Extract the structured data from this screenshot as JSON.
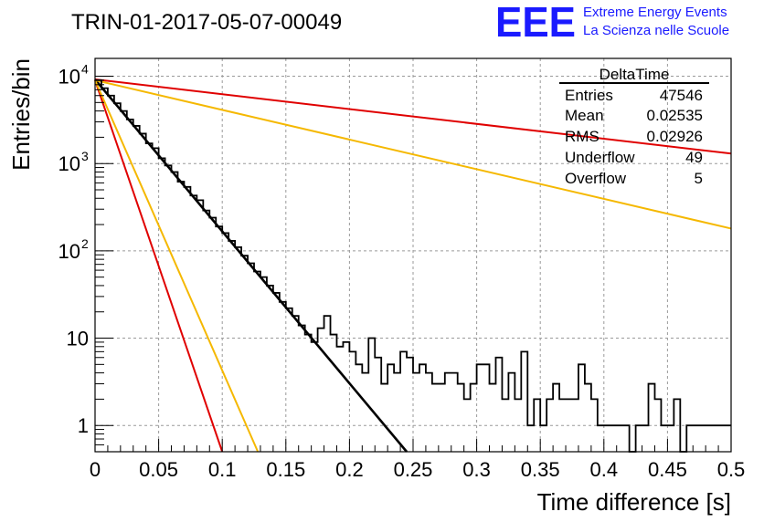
{
  "header": {
    "run_title": "TRIN-01-2017-05-07-00049",
    "logo_text": "EEE",
    "logo_line1": "Extreme Energy Events",
    "logo_line2": "La Scienza nelle Scuole",
    "logo_color": "#1a1aff"
  },
  "stats_box": {
    "title": "DeltaTime",
    "rows": [
      {
        "label": "Entries",
        "value": "47546"
      },
      {
        "label": "Mean",
        "value": "0.02535"
      },
      {
        "label": "RMS",
        "value": "0.02926"
      },
      {
        "label": "Underflow",
        "value": "49"
      },
      {
        "label": "Overflow",
        "value": "5"
      }
    ]
  },
  "chart_data": {
    "type": "line",
    "title": "TRIN-01-2017-05-07-00049",
    "xlabel": "Time difference [s]",
    "ylabel": "Entries/bin",
    "xlim": [
      0,
      0.5
    ],
    "ylim": [
      0.5,
      16000
    ],
    "y_scale": "log",
    "grid": true,
    "x_ticks": [
      "0",
      "0.05",
      "0.1",
      "0.15",
      "0.2",
      "0.25",
      "0.3",
      "0.35",
      "0.4",
      "0.45",
      "0.5"
    ],
    "y_ticks": [
      {
        "value": 1,
        "label": "1"
      },
      {
        "value": 10,
        "label": "10"
      },
      {
        "value": 100,
        "label": "10",
        "exp": "2"
      },
      {
        "value": 1000,
        "label": "10",
        "exp": "3"
      },
      {
        "value": 10000,
        "label": "10",
        "exp": "4"
      }
    ],
    "histogram": {
      "color": "#000000",
      "bin_width": 0.005,
      "values": [
        9000,
        7300,
        6000,
        4900,
        4000,
        3200,
        2700,
        2200,
        1700,
        1500,
        1150,
        950,
        800,
        620,
        540,
        430,
        380,
        290,
        240,
        190,
        160,
        130,
        110,
        88,
        72,
        58,
        50,
        40,
        33,
        26,
        22,
        18,
        14,
        11,
        9,
        13,
        18,
        11,
        8,
        9,
        7,
        5,
        4,
        10,
        6,
        3,
        5,
        4,
        7,
        6,
        4,
        5,
        4,
        3,
        3,
        4,
        4,
        3,
        2,
        3,
        5,
        5,
        3,
        6,
        2,
        4,
        2,
        7,
        1,
        2,
        1,
        2,
        3,
        2,
        2,
        2,
        5,
        3,
        2,
        1,
        1,
        1,
        1,
        1,
        0,
        1,
        1,
        3,
        2,
        1,
        1,
        2,
        0,
        1,
        1,
        1,
        1,
        1,
        1,
        1
      ]
    },
    "series": [
      {
        "color": "#000000",
        "x": [
          0,
          0.245
        ],
        "y": [
          9200,
          0.5
        ]
      },
      {
        "color": "#e00000",
        "x": [
          0,
          0.1
        ],
        "y": [
          9000,
          0.5
        ]
      },
      {
        "color": "#f5b800",
        "x": [
          0,
          0.128
        ],
        "y": [
          9000,
          0.5
        ]
      },
      {
        "color": "#e00000",
        "x": [
          0,
          0.5
        ],
        "y": [
          9200,
          1300
        ]
      },
      {
        "color": "#f5b800",
        "x": [
          0,
          0.5
        ],
        "y": [
          9000,
          180
        ]
      }
    ]
  }
}
